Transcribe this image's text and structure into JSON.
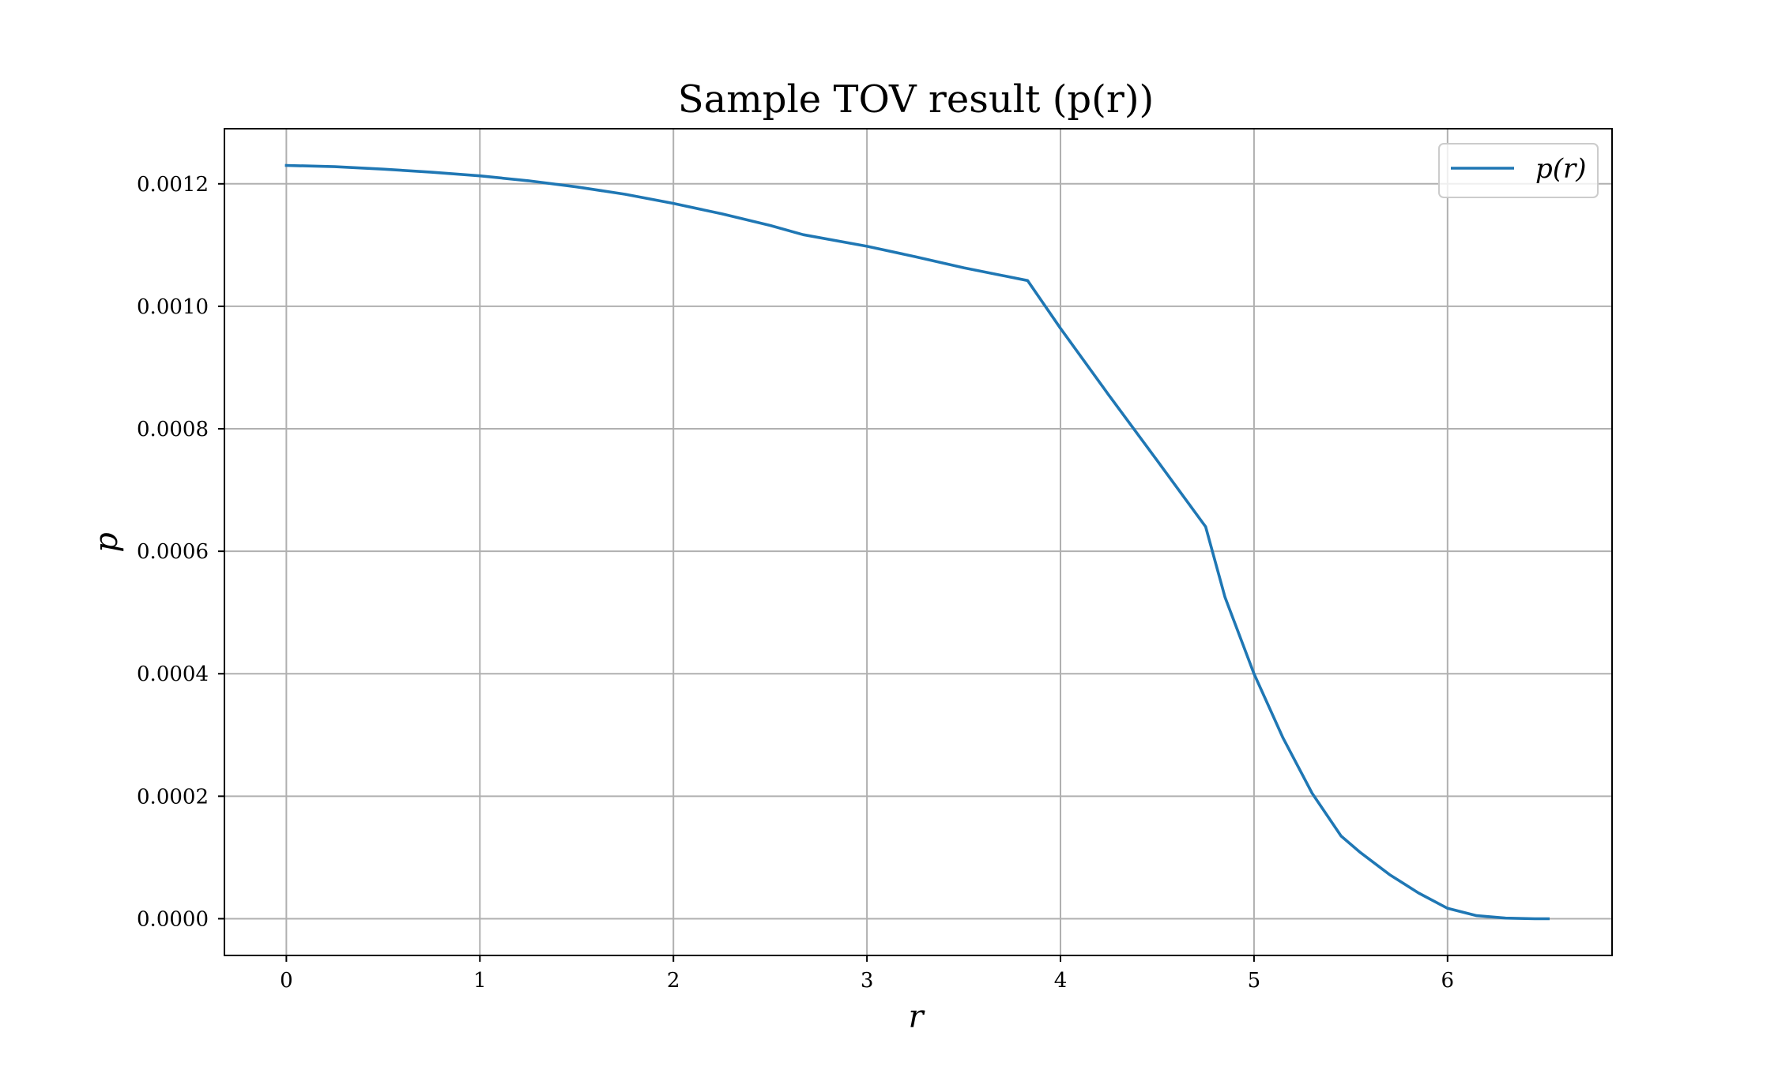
{
  "chart_data": {
    "type": "line",
    "title": "Sample TOV result (p(r))",
    "xlabel": "r",
    "ylabel": "p",
    "xlim": [
      -0.32,
      6.85
    ],
    "ylim": [
      -6e-05,
      0.00129
    ],
    "xticks": [
      0,
      1,
      2,
      3,
      4,
      5,
      6
    ],
    "xtick_labels": [
      "0",
      "1",
      "2",
      "3",
      "4",
      "5",
      "6"
    ],
    "yticks": [
      0.0,
      0.0002,
      0.0004,
      0.0006,
      0.0008,
      0.001,
      0.0012
    ],
    "ytick_labels": [
      "0.0000",
      "0.0002",
      "0.0004",
      "0.0006",
      "0.0008",
      "0.0010",
      "0.0012"
    ],
    "grid": true,
    "legend_position": "top-right",
    "colors": {
      "series": "#1f77b4",
      "grid": "#b0b0b0",
      "axes": "#000000"
    },
    "series": [
      {
        "name": "p(r)",
        "x": [
          0.0,
          0.25,
          0.5,
          0.75,
          1.0,
          1.25,
          1.5,
          1.75,
          2.0,
          2.25,
          2.5,
          2.67,
          3.0,
          3.25,
          3.5,
          3.83,
          4.0,
          4.25,
          4.5,
          4.75,
          4.85,
          5.0,
          5.15,
          5.3,
          5.45,
          5.55,
          5.7,
          5.85,
          6.0,
          6.15,
          6.3,
          6.45,
          6.52
        ],
        "y": [
          0.00123,
          0.001228,
          0.001224,
          0.001219,
          0.001213,
          0.001205,
          0.001195,
          0.001183,
          0.001168,
          0.001151,
          0.001132,
          0.001117,
          0.001098,
          0.001081,
          0.001063,
          0.001042,
          0.000964,
          0.000855,
          0.000748,
          0.00064,
          0.000525,
          0.0004,
          0.000295,
          0.000205,
          0.000135,
          0.000108,
          7.2e-05,
          4.2e-05,
          1.7e-05,
          5e-06,
          1e-06,
          0.0,
          0.0
        ]
      }
    ]
  }
}
